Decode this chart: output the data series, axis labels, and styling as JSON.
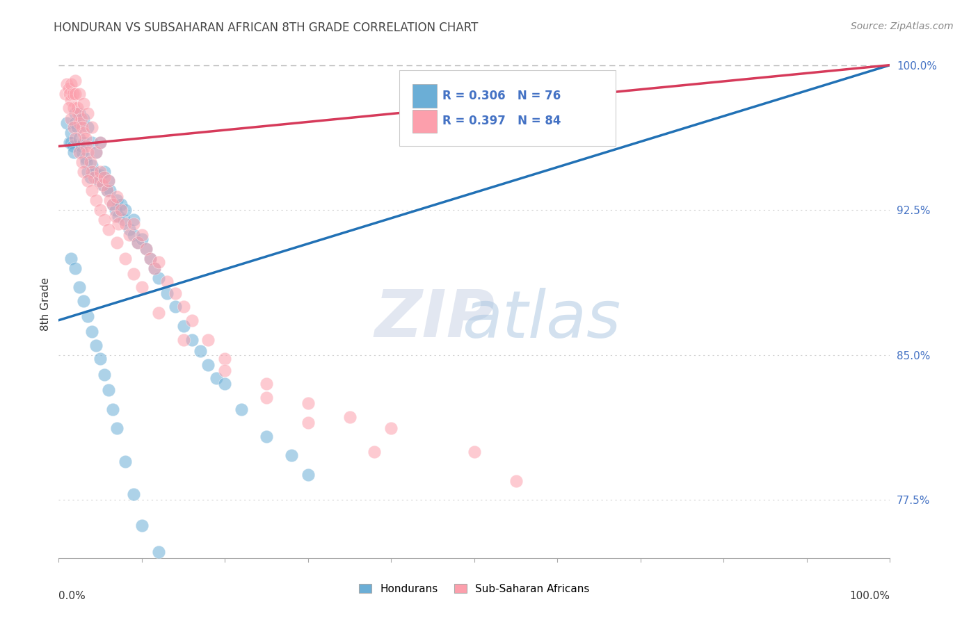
{
  "title": "HONDURAN VS SUBSAHARAN AFRICAN 8TH GRADE CORRELATION CHART",
  "source": "Source: ZipAtlas.com",
  "ylabel": "8th Grade",
  "xlim": [
    0.0,
    1.0
  ],
  "ylim": [
    0.745,
    1.008
  ],
  "ytick_vals": [
    0.775,
    0.85,
    0.925,
    1.0
  ],
  "ytick_labels": [
    "77.5%",
    "85.0%",
    "92.5%",
    "100.0%"
  ],
  "legend_blue_r": "0.306",
  "legend_blue_n": "76",
  "legend_pink_r": "0.397",
  "legend_pink_n": "84",
  "legend_label_blue": "Hondurans",
  "legend_label_pink": "Sub-Saharan Africans",
  "blue_color": "#6baed6",
  "pink_color": "#fc9fac",
  "blue_line_color": "#2171b5",
  "pink_line_color": "#d63a5a",
  "watermark_zip": "ZIP",
  "watermark_atlas": "atlas",
  "blue_scatter_x": [
    0.01,
    0.013,
    0.015,
    0.015,
    0.017,
    0.018,
    0.02,
    0.02,
    0.022,
    0.025,
    0.025,
    0.027,
    0.028,
    0.03,
    0.03,
    0.032,
    0.033,
    0.035,
    0.035,
    0.038,
    0.04,
    0.04,
    0.042,
    0.045,
    0.048,
    0.05,
    0.05,
    0.053,
    0.055,
    0.058,
    0.06,
    0.062,
    0.065,
    0.068,
    0.07,
    0.072,
    0.075,
    0.078,
    0.08,
    0.085,
    0.09,
    0.09,
    0.095,
    0.1,
    0.105,
    0.11,
    0.115,
    0.12,
    0.13,
    0.14,
    0.15,
    0.16,
    0.17,
    0.18,
    0.19,
    0.2,
    0.22,
    0.25,
    0.28,
    0.3,
    0.015,
    0.02,
    0.025,
    0.03,
    0.035,
    0.04,
    0.045,
    0.05,
    0.055,
    0.06,
    0.065,
    0.07,
    0.08,
    0.09,
    0.1,
    0.12
  ],
  "blue_scatter_y": [
    0.97,
    0.96,
    0.965,
    0.96,
    0.958,
    0.955,
    0.975,
    0.97,
    0.968,
    0.975,
    0.962,
    0.958,
    0.955,
    0.972,
    0.96,
    0.952,
    0.95,
    0.968,
    0.945,
    0.942,
    0.96,
    0.948,
    0.945,
    0.955,
    0.94,
    0.96,
    0.943,
    0.938,
    0.945,
    0.935,
    0.94,
    0.935,
    0.928,
    0.925,
    0.93,
    0.922,
    0.928,
    0.92,
    0.925,
    0.915,
    0.92,
    0.912,
    0.908,
    0.91,
    0.905,
    0.9,
    0.895,
    0.89,
    0.882,
    0.875,
    0.865,
    0.858,
    0.852,
    0.845,
    0.838,
    0.835,
    0.822,
    0.808,
    0.798,
    0.788,
    0.9,
    0.895,
    0.885,
    0.878,
    0.87,
    0.862,
    0.855,
    0.848,
    0.84,
    0.832,
    0.822,
    0.812,
    0.795,
    0.778,
    0.762,
    0.748
  ],
  "pink_scatter_x": [
    0.008,
    0.01,
    0.012,
    0.013,
    0.015,
    0.015,
    0.017,
    0.018,
    0.02,
    0.02,
    0.022,
    0.023,
    0.025,
    0.025,
    0.027,
    0.028,
    0.03,
    0.03,
    0.032,
    0.033,
    0.035,
    0.035,
    0.038,
    0.04,
    0.04,
    0.042,
    0.045,
    0.048,
    0.05,
    0.05,
    0.052,
    0.055,
    0.058,
    0.06,
    0.062,
    0.065,
    0.068,
    0.07,
    0.072,
    0.075,
    0.08,
    0.085,
    0.09,
    0.095,
    0.1,
    0.105,
    0.11,
    0.115,
    0.12,
    0.13,
    0.14,
    0.15,
    0.16,
    0.18,
    0.2,
    0.25,
    0.3,
    0.35,
    0.4,
    0.5,
    0.012,
    0.015,
    0.018,
    0.02,
    0.025,
    0.028,
    0.03,
    0.035,
    0.04,
    0.045,
    0.05,
    0.055,
    0.06,
    0.07,
    0.08,
    0.09,
    0.1,
    0.12,
    0.15,
    0.2,
    0.25,
    0.3,
    0.38,
    0.55
  ],
  "pink_scatter_y": [
    0.985,
    0.99,
    0.988,
    0.985,
    0.99,
    0.982,
    0.985,
    0.978,
    0.992,
    0.985,
    0.978,
    0.975,
    0.985,
    0.97,
    0.972,
    0.968,
    0.98,
    0.965,
    0.962,
    0.958,
    0.975,
    0.955,
    0.95,
    0.968,
    0.945,
    0.942,
    0.955,
    0.94,
    0.96,
    0.945,
    0.938,
    0.942,
    0.935,
    0.94,
    0.93,
    0.928,
    0.922,
    0.932,
    0.918,
    0.925,
    0.918,
    0.912,
    0.918,
    0.908,
    0.912,
    0.905,
    0.9,
    0.895,
    0.898,
    0.888,
    0.882,
    0.875,
    0.868,
    0.858,
    0.848,
    0.835,
    0.825,
    0.818,
    0.812,
    0.8,
    0.978,
    0.972,
    0.968,
    0.962,
    0.955,
    0.95,
    0.945,
    0.94,
    0.935,
    0.93,
    0.925,
    0.92,
    0.915,
    0.908,
    0.9,
    0.892,
    0.885,
    0.872,
    0.858,
    0.842,
    0.828,
    0.815,
    0.8,
    0.785
  ],
  "blue_line_x0": 0.0,
  "blue_line_y0": 0.868,
  "blue_line_x1": 1.0,
  "blue_line_y1": 1.0,
  "pink_line_x0": 0.0,
  "pink_line_y0": 0.958,
  "pink_line_x1": 1.0,
  "pink_line_y1": 1.0
}
